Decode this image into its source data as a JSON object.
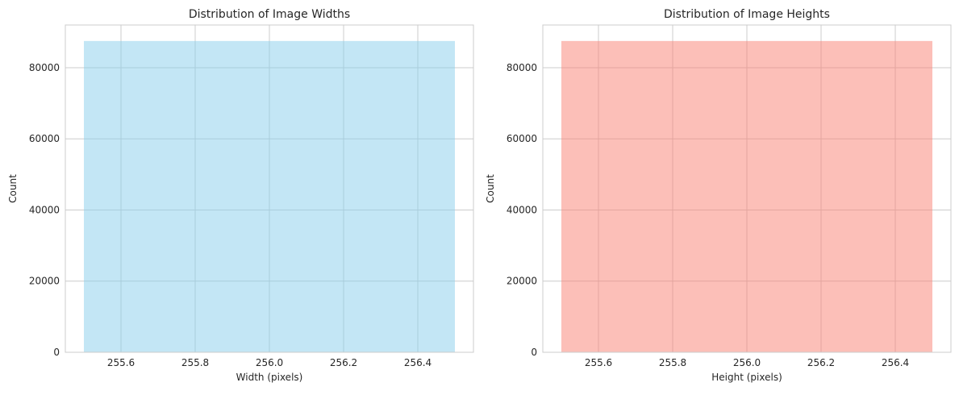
{
  "chart_data": [
    {
      "type": "bar",
      "title": "Distribution of Image Widths",
      "xlabel": "Width (pixels)",
      "ylabel": "Count",
      "xlim": [
        255.45,
        256.55
      ],
      "ylim": [
        0,
        92000
      ],
      "xticks": [
        255.6,
        255.8,
        256.0,
        256.2,
        256.4
      ],
      "xtick_labels": [
        "255.6",
        "255.8",
        "256.0",
        "256.2",
        "256.4"
      ],
      "yticks": [
        0,
        20000,
        40000,
        60000,
        80000
      ],
      "ytick_labels": [
        "0",
        "20000",
        "40000",
        "60000",
        "80000"
      ],
      "bins": [
        {
          "x0": 255.5,
          "x1": 256.5,
          "count": 87500
        }
      ],
      "color": "#87ceeb",
      "opacity": 0.5,
      "grid": true
    },
    {
      "type": "bar",
      "title": "Distribution of Image Heights",
      "xlabel": "Height (pixels)",
      "ylabel": "Count",
      "xlim": [
        255.45,
        256.55
      ],
      "ylim": [
        0,
        92000
      ],
      "xticks": [
        255.6,
        255.8,
        256.0,
        256.2,
        256.4
      ],
      "xtick_labels": [
        "255.6",
        "255.8",
        "256.0",
        "256.2",
        "256.4"
      ],
      "yticks": [
        0,
        20000,
        40000,
        60000,
        80000
      ],
      "ytick_labels": [
        "0",
        "20000",
        "40000",
        "60000",
        "80000"
      ],
      "bins": [
        {
          "x0": 255.5,
          "x1": 256.5,
          "count": 87500
        }
      ],
      "color": "#fa8072",
      "opacity": 0.5,
      "grid": true
    }
  ]
}
